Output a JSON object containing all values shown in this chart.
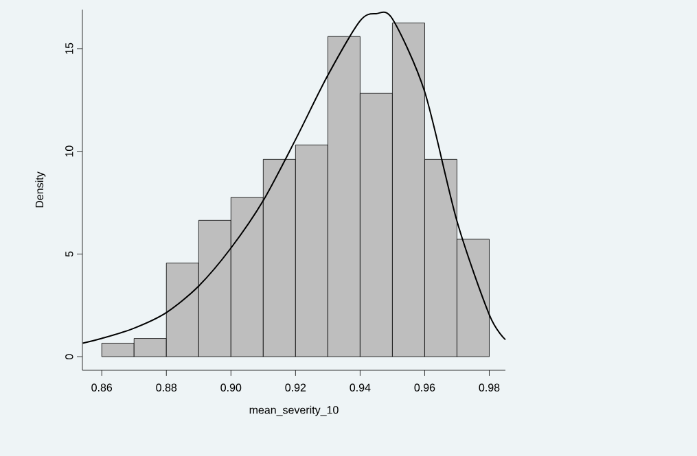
{
  "chart_data": {
    "type": "histogram",
    "xlabel": "mean_severity_10",
    "ylabel": "Density",
    "color": "#bebebe",
    "bins": [
      0.86,
      0.87,
      0.88,
      0.89,
      0.9,
      0.91,
      0.92,
      0.93,
      0.94,
      0.95,
      0.96,
      0.97,
      0.98
    ],
    "values": [
      0.66,
      0.89,
      4.56,
      6.64,
      7.76,
      9.61,
      10.31,
      15.59,
      12.82,
      16.25,
      9.61,
      5.72
    ],
    "series": [
      {
        "type": "line",
        "color": "#000000",
        "x": [
          0.8541,
          0.86,
          0.87,
          0.88,
          0.89,
          0.9,
          0.91,
          0.92,
          0.93,
          0.94,
          0.945,
          0.95,
          0.96,
          0.97,
          0.98,
          0.985
        ],
        "values": [
          0.66,
          0.89,
          1.39,
          2.15,
          3.44,
          5.29,
          7.6,
          10.57,
          13.7,
          16.35,
          16.7,
          16.45,
          12.9,
          6.6,
          2.05,
          0.83
        ]
      }
    ],
    "xlim": [
      0.854,
      0.985
    ],
    "ylim": [
      -0.66,
      16.9
    ],
    "xticks": [
      {
        "value": 0.86,
        "label": "0.86"
      },
      {
        "value": 0.88,
        "label": "0.88"
      },
      {
        "value": 0.9,
        "label": "0.90"
      },
      {
        "value": 0.92,
        "label": "0.92"
      },
      {
        "value": 0.94,
        "label": "0.94"
      },
      {
        "value": 0.96,
        "label": "0.96"
      },
      {
        "value": 0.98,
        "label": "0.98"
      }
    ],
    "yticks": [
      0,
      5,
      10,
      15
    ],
    "grid": false
  }
}
